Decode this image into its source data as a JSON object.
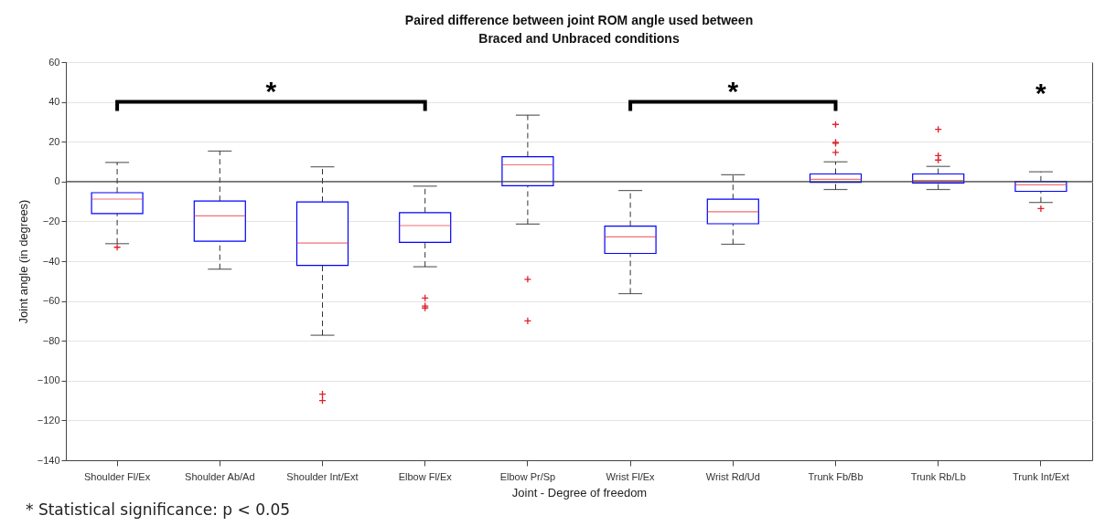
{
  "chart_data": {
    "type": "box",
    "title": "Paired difference between joint ROM angle used between\nBraced and Unbraced conditions",
    "xlabel": "Joint - Degree of freedom",
    "ylabel": "Joint angle (in degrees)",
    "categories": [
      "Shoulder Fl/Ex",
      "Shoulder Ab/Ad",
      "Shoulder Int/Ext",
      "Elbow Fl/Ex",
      "Elbow Pr/Sp",
      "Wrist Fl/Ex",
      "Wrist Rd/Ud",
      "Trunk Fb/Bb",
      "Trunk Rb/Lb",
      "Trunk Int/Ext"
    ],
    "series": [
      {
        "color": "#0000ff",
        "boxes": [
          {
            "low": -31.2,
            "q1": -16.1,
            "median": -8.8,
            "q3": -5.6,
            "high": 9.6,
            "outliers": [
              -33
            ]
          },
          {
            "low": -44,
            "q1": -30,
            "median": -17.2,
            "q3": -9.8,
            "high": 15.3
          },
          {
            "low": -77.2,
            "q1": -42.1,
            "median": -30.9,
            "q3": -10.2,
            "high": 7.4,
            "outliers": [
              -106.8,
              -110
            ]
          },
          {
            "low": -42.8,
            "q1": -30.5,
            "median": -22.1,
            "q3": -15.6,
            "high": -2.3,
            "outliers": [
              -58.5,
              -62.5,
              -63.5
            ]
          },
          {
            "low": -21.4,
            "q1": -2.1,
            "median": 8.4,
            "q3": 12.5,
            "high": 33.3,
            "outliers": [
              -49.1,
              -70
            ]
          },
          {
            "low": -56.3,
            "q1": -36.1,
            "median": -27.8,
            "q3": -22.4,
            "high": -4.5
          },
          {
            "low": -31.5,
            "q1": -21.2,
            "median": -15.2,
            "q3": -8.9,
            "high": 3.4
          },
          {
            "low": -4,
            "q1": -0.4,
            "median": 1.1,
            "q3": 3.8,
            "high": 9.9,
            "outliers": [
              28.7,
              19.7,
              19.2,
              14.6
            ]
          },
          {
            "low": -4,
            "q1": -0.7,
            "median": 0.5,
            "q3": 3.8,
            "high": 7.6,
            "outliers": [
              26.2,
              13,
              10.8
            ]
          },
          {
            "low": -10.5,
            "q1": -4.9,
            "median": -1.6,
            "q3": 0,
            "high": 4.9,
            "outliers": [
              -13.6
            ]
          }
        ]
      }
    ],
    "ylim": [
      -140,
      60
    ],
    "yticks": [
      -140,
      -120,
      -100,
      -80,
      -60,
      -40,
      -20,
      0,
      20,
      40,
      60
    ],
    "grid": "y",
    "ref_lines": [
      {
        "axis": "y",
        "value": 0,
        "color": "#404040"
      }
    ],
    "annotations": [
      "*",
      "*",
      "*",
      "* Statistical significance: p < 0.05"
    ]
  }
}
